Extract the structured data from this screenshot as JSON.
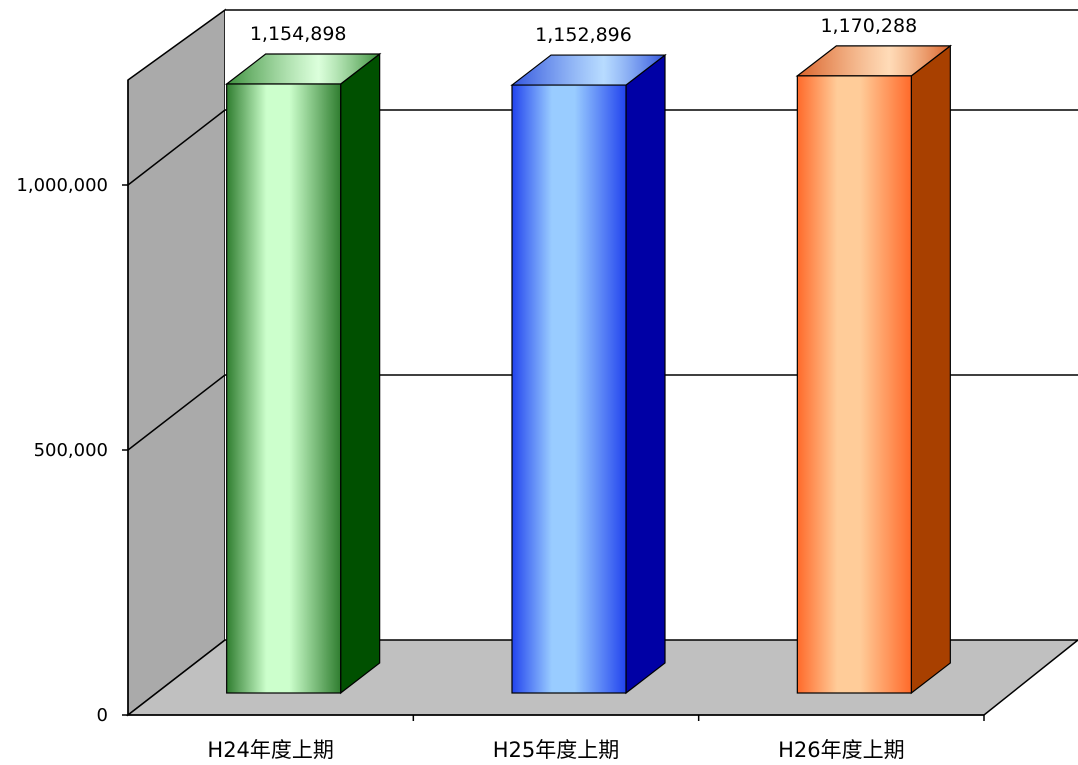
{
  "chart_data": {
    "type": "bar",
    "categories": [
      "H24年度上期",
      "H25年度上期",
      "H26年度上期"
    ],
    "values": [
      1154898,
      1152896,
      1170288
    ],
    "value_labels": [
      "1,154,898",
      "1,152,896",
      "1,170,288"
    ],
    "yticks": [
      0,
      500000,
      1000000
    ],
    "ytick_labels": [
      "0",
      "500,000",
      "1,000,000"
    ],
    "ylim": [
      0,
      1250000
    ],
    "grid": true,
    "title": "",
    "xlabel": "",
    "ylabel": "",
    "colors": {
      "series": [
        {
          "front_edge": "#2f7d2f",
          "front_light": "#ccffcc",
          "side": "#005000",
          "top": "#3c8f3c"
        },
        {
          "front_edge": "#2244ee",
          "front_light": "#99ccff",
          "side": "#0000a5",
          "top": "#3355dd"
        },
        {
          "front_edge": "#ff6a2a",
          "front_light": "#ffcc99",
          "side": "#a84000",
          "top": "#d9622a"
        }
      ],
      "wall": "#aaaaaa",
      "floor": "#c0c0c0",
      "grid": "#000000"
    }
  }
}
